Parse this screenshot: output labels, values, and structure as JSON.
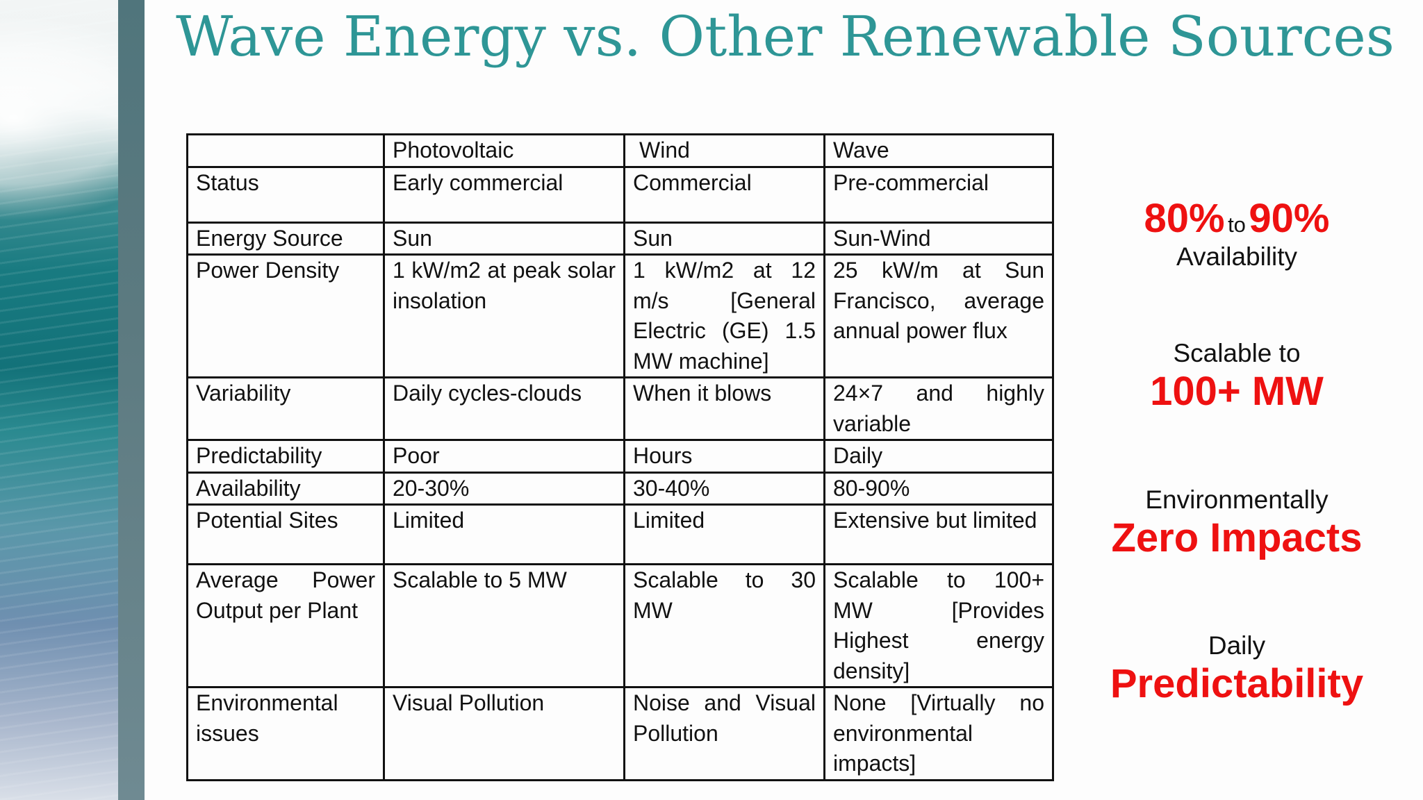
{
  "title": "Wave Energy vs. Other Renewable Sources",
  "table": {
    "header": [
      "",
      "Photovoltaic",
      "Wind",
      "Wave"
    ],
    "rows": [
      {
        "label": "Status",
        "pv": "Early commercial",
        "wind": "Commercial",
        "wave": "Pre-commercial"
      },
      {
        "label": "Energy Source",
        "pv": "Sun",
        "wind": "Sun",
        "wave": "Sun-Wind"
      },
      {
        "label": "Power Density",
        "pv": "1 kW/m2 at peak solar insolation",
        "wind": "1 kW/m2 at 12 m/s [General Electric (GE) 1.5 MW machine]",
        "wave": "25 kW/m at Sun Francisco, average annual power flux"
      },
      {
        "label": "Variability",
        "pv": "Daily cycles-clouds",
        "wind": "When it blows",
        "wave": "24×7 and highly variable"
      },
      {
        "label": "Predictability",
        "pv": "Poor",
        "wind": "Hours",
        "wave": "Daily"
      },
      {
        "label": "Availability",
        "pv": "20-30%",
        "wind": "30-40%",
        "wave": "80-90%"
      },
      {
        "label": "Potential Sites",
        "pv": "Limited",
        "wind": "Limited",
        "wave": "Extensive but limited"
      },
      {
        "label": "Average Power Output per Plant",
        "pv": "Scalable to 5 MW",
        "wind": "Scalable to 30 MW",
        "wave": "Scalable to 100+ MW [Provides Highest energy density]"
      },
      {
        "label": "Environmental issues",
        "pv": "Visual Pollution",
        "wind": "Noise and Visual Pollution",
        "wave": "None [Virtually no environmental impacts]"
      }
    ]
  },
  "highlights": {
    "h1": {
      "big1": "80%",
      "connector": "to",
      "big2": "90%",
      "caption": "Availability"
    },
    "h2": {
      "caption": "Scalable to",
      "big": "100+ MW"
    },
    "h3": {
      "caption": "Environmentally",
      "big": "Zero Impacts"
    },
    "h4": {
      "caption": "Daily",
      "big": "Predictability"
    }
  },
  "colors": {
    "title": "#2e9696",
    "row_label": "#e81010",
    "wave_text": "#2a8aa8",
    "highlight": "#ee1111"
  }
}
